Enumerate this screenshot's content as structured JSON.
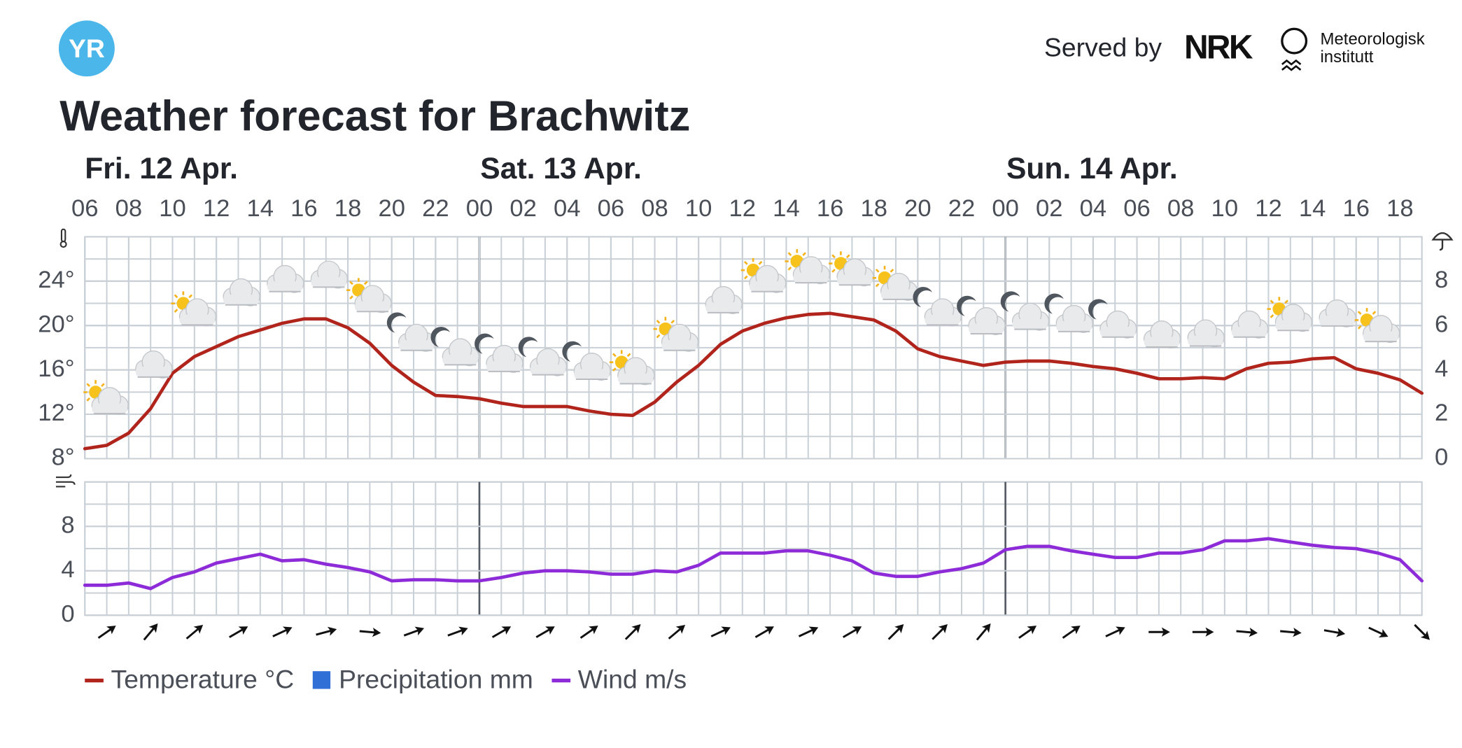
{
  "header": {
    "logo": "YR",
    "served_by": "Served by",
    "partner": "NRK",
    "institute": [
      "Meteorologisk",
      "institutt"
    ]
  },
  "title": "Weather forecast for Brachwitz",
  "days": [
    {
      "label": "Fri. 12 Apr.",
      "start": 0
    },
    {
      "label": "Sat. 13 Apr.",
      "start": 18
    },
    {
      "label": "Sun. 14 Apr.",
      "start": 42
    }
  ],
  "chart_data": [
    {
      "type": "line",
      "x": [
        0,
        1,
        2,
        3,
        4,
        5,
        6,
        7,
        8,
        9,
        10,
        11,
        12,
        13,
        14,
        15,
        16,
        17,
        18,
        19,
        20,
        21,
        22,
        23,
        24,
        25,
        26,
        27,
        28,
        29,
        30,
        31,
        32,
        33,
        34,
        35,
        36,
        37,
        38,
        39,
        40,
        41,
        42,
        43,
        44,
        45,
        46,
        47,
        48,
        49,
        50,
        51,
        52,
        53,
        54,
        55,
        56,
        57,
        58,
        59,
        60,
        61
      ],
      "xlim": [
        0,
        61
      ],
      "xticks": [
        {
          "value": 0,
          "label": "06"
        },
        {
          "value": 2,
          "label": "08"
        },
        {
          "value": 4,
          "label": "10"
        },
        {
          "value": 6,
          "label": "12"
        },
        {
          "value": 8,
          "label": "14"
        },
        {
          "value": 10,
          "label": "16"
        },
        {
          "value": 12,
          "label": "18"
        },
        {
          "value": 14,
          "label": "20"
        },
        {
          "value": 16,
          "label": "22"
        },
        {
          "value": 18,
          "label": "00"
        },
        {
          "value": 20,
          "label": "02"
        },
        {
          "value": 22,
          "label": "04"
        },
        {
          "value": 24,
          "label": "06"
        },
        {
          "value": 26,
          "label": "08"
        },
        {
          "value": 28,
          "label": "10"
        },
        {
          "value": 30,
          "label": "12"
        },
        {
          "value": 32,
          "label": "14"
        },
        {
          "value": 34,
          "label": "16"
        },
        {
          "value": 36,
          "label": "18"
        },
        {
          "value": 38,
          "label": "20"
        },
        {
          "value": 40,
          "label": "22"
        },
        {
          "value": 42,
          "label": "00"
        },
        {
          "value": 44,
          "label": "02"
        },
        {
          "value": 46,
          "label": "04"
        },
        {
          "value": 48,
          "label": "06"
        },
        {
          "value": 50,
          "label": "08"
        },
        {
          "value": 52,
          "label": "10"
        },
        {
          "value": 54,
          "label": "12"
        },
        {
          "value": 56,
          "label": "14"
        },
        {
          "value": 58,
          "label": "16"
        },
        {
          "value": 60,
          "label": "18"
        }
      ],
      "ylim": [
        8,
        28
      ],
      "yticks": [
        {
          "value": 8,
          "label": "8°"
        },
        {
          "value": 12,
          "label": "12°"
        },
        {
          "value": 16,
          "label": "16°"
        },
        {
          "value": 20,
          "label": "20°"
        },
        {
          "value": 24,
          "label": "24°"
        }
      ],
      "y2lim": [
        0,
        10
      ],
      "y2ticks": [
        0,
        2,
        4,
        6,
        8
      ],
      "grid": true,
      "series": [
        {
          "name": "Temperature °C",
          "color": "#b0241c",
          "values": [
            8.9,
            9.2,
            10.3,
            12.5,
            15.7,
            17.2,
            18.1,
            19.0,
            19.6,
            20.2,
            20.6,
            20.6,
            19.8,
            18.4,
            16.4,
            14.9,
            13.7,
            13.6,
            13.4,
            13.0,
            12.7,
            12.7,
            12.7,
            12.3,
            12.0,
            11.9,
            13.1,
            14.9,
            16.4,
            18.3,
            19.5,
            20.2,
            20.7,
            21.0,
            21.1,
            20.8,
            20.5,
            19.5,
            17.9,
            17.2,
            16.8,
            16.4,
            16.7,
            16.8,
            16.8,
            16.6,
            16.3,
            16.1,
            15.7,
            15.2,
            15.2,
            15.3,
            15.2,
            16.1,
            16.6,
            16.7,
            17.0,
            17.1,
            16.1,
            15.7,
            15.1,
            13.9
          ]
        },
        {
          "name": "Precipitation mm",
          "color": "#2f6fd6",
          "axis": "y2",
          "type": "bar",
          "values": [
            0,
            0,
            0,
            0,
            0,
            0,
            0,
            0,
            0,
            0,
            0,
            0,
            0,
            0,
            0,
            0,
            0,
            0,
            0,
            0,
            0,
            0,
            0,
            0,
            0,
            0,
            0,
            0,
            0,
            0,
            0,
            0,
            0,
            0,
            0,
            0,
            0,
            0,
            0,
            0,
            0,
            0,
            0,
            0,
            0,
            0,
            0,
            0,
            0,
            0,
            0,
            0,
            0,
            0,
            0,
            0,
            0,
            0,
            0,
            0,
            0,
            0
          ]
        }
      ],
      "symbol_hours": [
        1,
        3,
        5,
        7,
        9,
        11,
        13,
        15,
        17,
        19,
        21,
        23,
        25,
        27,
        29,
        31,
        33,
        35,
        37,
        39,
        41,
        43,
        45,
        47,
        49,
        51,
        53,
        55,
        57,
        59
      ],
      "symbols": [
        "partly-sunny",
        "cloudy",
        "partly-sunny",
        "cloudy",
        "cloudy",
        "cloudy",
        "partly-sunny",
        "partly-night",
        "partly-night",
        "partly-night",
        "partly-night",
        "partly-night",
        "partly-sunny",
        "partly-sunny",
        "cloudy",
        "partly-sunny",
        "partly-sunny",
        "partly-sunny",
        "partly-sunny",
        "partly-night",
        "partly-night",
        "partly-night",
        "partly-night",
        "partly-night",
        "cloudy",
        "cloudy",
        "cloudy",
        "partly-sunny",
        "cloudy",
        "partly-sunny"
      ]
    },
    {
      "type": "line",
      "x": [
        0,
        1,
        2,
        3,
        4,
        5,
        6,
        7,
        8,
        9,
        10,
        11,
        12,
        13,
        14,
        15,
        16,
        17,
        18,
        19,
        20,
        21,
        22,
        23,
        24,
        25,
        26,
        27,
        28,
        29,
        30,
        31,
        32,
        33,
        34,
        35,
        36,
        37,
        38,
        39,
        40,
        41,
        42,
        43,
        44,
        45,
        46,
        47,
        48,
        49,
        50,
        51,
        52,
        53,
        54,
        55,
        56,
        57,
        58,
        59,
        60,
        61
      ],
      "xlim": [
        0,
        61
      ],
      "ylim": [
        0,
        12
      ],
      "yticks": [
        0,
        4,
        8
      ],
      "grid": true,
      "series": [
        {
          "name": "Wind m/s",
          "color": "#8e2bd9",
          "values": [
            2.7,
            2.7,
            2.9,
            2.4,
            3.4,
            3.9,
            4.7,
            5.1,
            5.5,
            4.9,
            5.0,
            4.6,
            4.3,
            3.9,
            3.1,
            3.2,
            3.2,
            3.1,
            3.1,
            3.4,
            3.8,
            4.0,
            4.0,
            3.9,
            3.7,
            3.7,
            4.0,
            3.9,
            4.5,
            5.6,
            5.6,
            5.6,
            5.8,
            5.8,
            5.4,
            4.9,
            3.8,
            3.5,
            3.5,
            3.9,
            4.2,
            4.7,
            5.9,
            6.2,
            6.2,
            5.8,
            5.5,
            5.2,
            5.2,
            5.6,
            5.6,
            5.9,
            6.7,
            6.7,
            6.9,
            6.6,
            6.3,
            6.1,
            6.0,
            5.6,
            5.0,
            3.1
          ]
        }
      ],
      "arrow_hours": [
        1,
        3,
        5,
        7,
        9,
        11,
        13,
        15,
        17,
        19,
        21,
        23,
        25,
        27,
        29,
        31,
        33,
        35,
        37,
        39,
        41,
        43,
        45,
        47,
        49,
        51,
        53,
        55,
        57,
        59,
        61
      ],
      "arrow_angles": [
        -35,
        -50,
        -40,
        -30,
        -25,
        -15,
        5,
        -20,
        -20,
        -30,
        -30,
        -35,
        -45,
        -40,
        -25,
        -30,
        -25,
        -30,
        -45,
        -45,
        -50,
        -35,
        -35,
        -25,
        0,
        0,
        5,
        5,
        10,
        25,
        45
      ]
    }
  ]
}
